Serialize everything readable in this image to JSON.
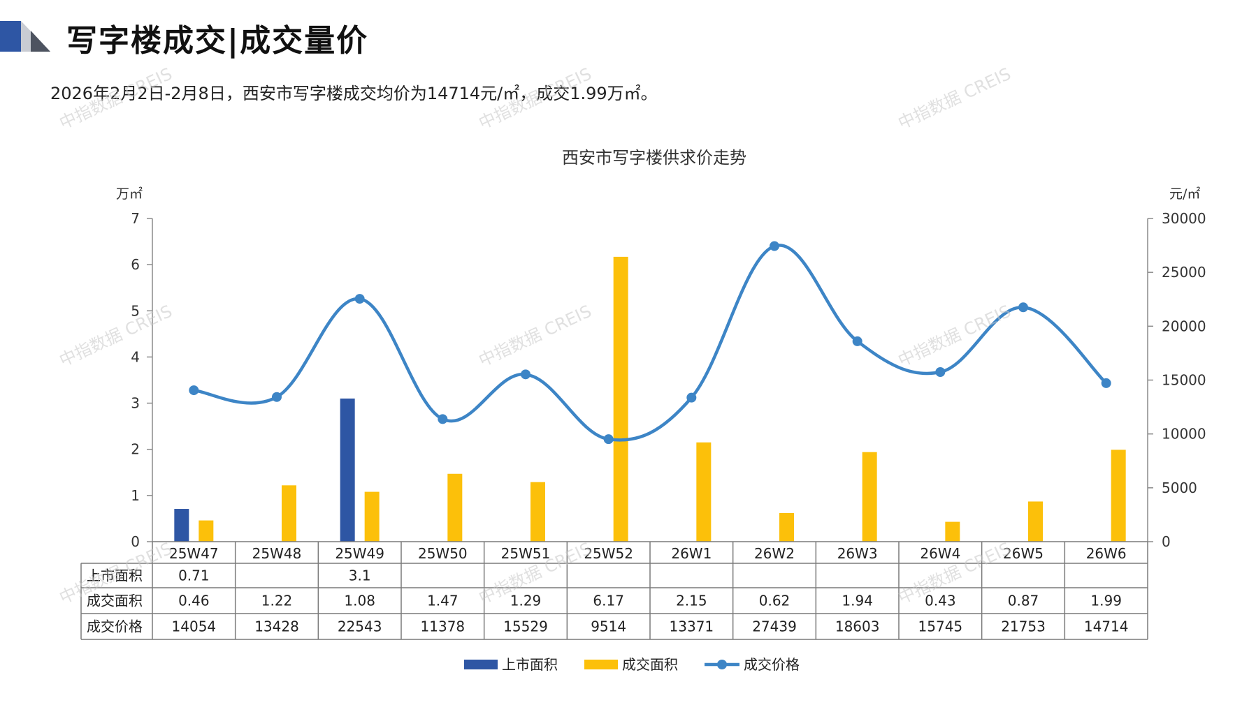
{
  "header": {
    "title": "写字楼成交|成交量价"
  },
  "summary_text": "2026年2月2日-2月8日，西安市写字楼成交均价为14714元/㎡，成交1.99万㎡。",
  "watermark_text": "中指数据 CREIS",
  "colors": {
    "supply": "#2e56a4",
    "deal_area": "#fcc00a",
    "price": "#3d85c6",
    "header_blue": "#2e56a4",
    "header_gray": "#9fa6b2"
  },
  "chart_data": {
    "type": "bar",
    "title": "西安市写字楼供求价走势",
    "left_unit": "万㎡",
    "right_unit": "元/㎡",
    "left_axis": {
      "min": 0,
      "max": 7,
      "ticks": [
        "0",
        "1",
        "2",
        "3",
        "4",
        "5",
        "6",
        "7"
      ]
    },
    "right_axis": {
      "min": 0,
      "max": 30000,
      "ticks": [
        "0",
        "5000",
        "10000",
        "15000",
        "20000",
        "25000",
        "30000"
      ]
    },
    "categories": [
      "25W47",
      "25W48",
      "25W49",
      "25W50",
      "25W51",
      "25W52",
      "26W1",
      "26W2",
      "26W3",
      "26W4",
      "26W5",
      "26W6"
    ],
    "series": [
      {
        "name": "上市面积",
        "type": "bar",
        "axis": "left",
        "values": [
          0.71,
          null,
          3.1,
          null,
          null,
          null,
          null,
          null,
          null,
          null,
          null,
          null
        ],
        "labels": [
          "0.71",
          "",
          "3.1",
          "",
          "",
          "",
          "",
          "",
          "",
          "",
          "",
          ""
        ]
      },
      {
        "name": "成交面积",
        "type": "bar",
        "axis": "left",
        "values": [
          0.46,
          1.22,
          1.08,
          1.47,
          1.29,
          6.17,
          2.15,
          0.62,
          1.94,
          0.43,
          0.87,
          1.99
        ],
        "labels": [
          "0.46",
          "1.22",
          "1.08",
          "1.47",
          "1.29",
          "6.17",
          "2.15",
          "0.62",
          "1.94",
          "0.43",
          "0.87",
          "1.99"
        ]
      },
      {
        "name": "成交价格",
        "type": "line",
        "axis": "right",
        "values": [
          14054,
          13428,
          22543,
          11378,
          15529,
          9514,
          13371,
          27439,
          18603,
          15745,
          21753,
          14714
        ],
        "labels": [
          "14054",
          "13428",
          "22543",
          "11378",
          "15529",
          "9514",
          "13371",
          "27439",
          "18603",
          "15745",
          "21753",
          "14714"
        ]
      }
    ],
    "legend_position": "bottom",
    "grid": false
  }
}
